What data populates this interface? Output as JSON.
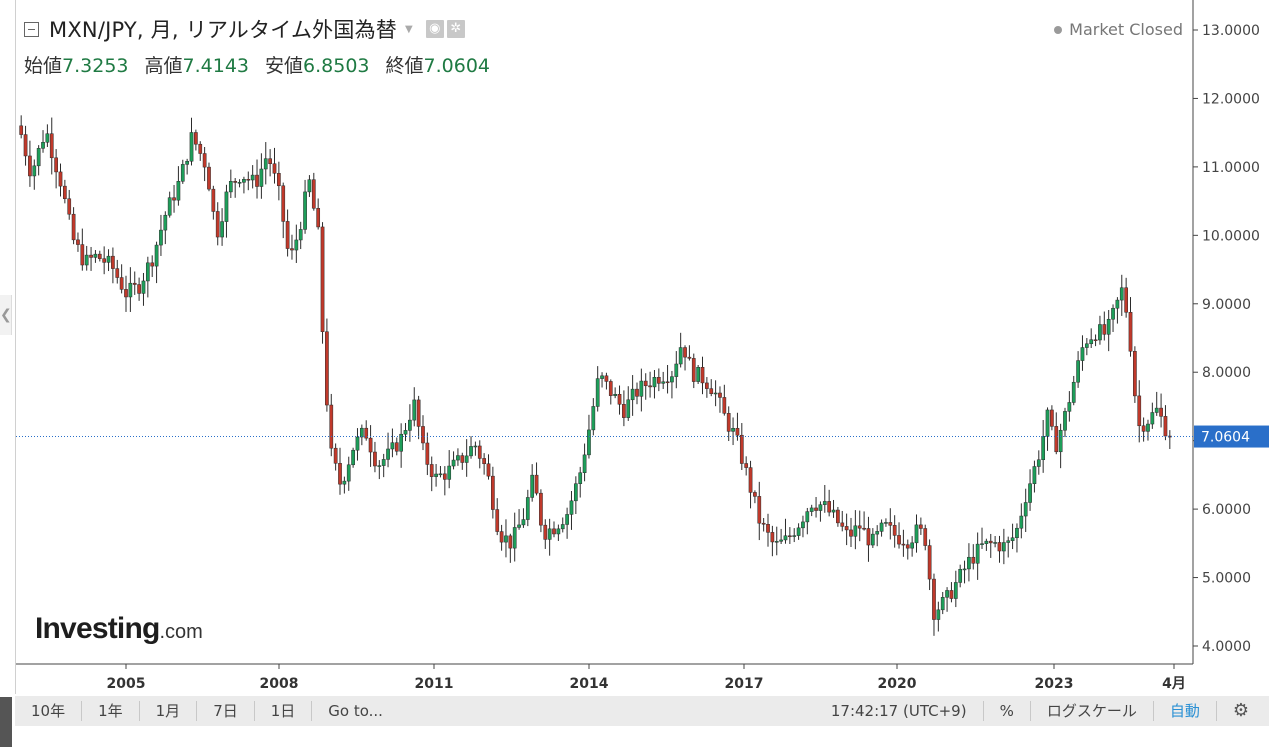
{
  "header": {
    "title": "MXN/JPY, 月, リアルタイム外国為替",
    "camera_icon": "camera-icon",
    "settings_icon": "gear-icon"
  },
  "ohlc": [
    {
      "label": "始値",
      "value": "7.3253"
    },
    {
      "label": "高値",
      "value": "7.4143"
    },
    {
      "label": "安値",
      "value": "6.8503"
    },
    {
      "label": "終値",
      "value": "7.0604"
    }
  ],
  "status": "Market Closed",
  "logo": {
    "main": "Investing",
    "suffix": ".com"
  },
  "toolbar": {
    "ranges": [
      "10年",
      "1年",
      "1月",
      "7日",
      "1日"
    ],
    "goto": "Go to...",
    "time": "17:42:17 (UTC+9)",
    "percent": "%",
    "log_scale": "ログスケール",
    "auto": "自動",
    "settings_icon": "gear-icon"
  },
  "colors": {
    "up": "#1e9e5a",
    "down": "#c0392b",
    "wick": "#2b2b2b",
    "price_line": "#2a6fc9",
    "price_label_bg": "#2a6fc9"
  },
  "chart_data": {
    "type": "candlestick",
    "pair": "MXN/JPY",
    "interval": "月",
    "x_start": 2003.35,
    "x_end": 2025.3,
    "x_ticks": [
      {
        "value": 2005,
        "label": "2005"
      },
      {
        "value": 2008,
        "label": "2008"
      },
      {
        "value": 2011,
        "label": "2011"
      },
      {
        "value": 2014,
        "label": "2014"
      },
      {
        "value": 2017,
        "label": "2017"
      },
      {
        "value": 2020,
        "label": "2020"
      },
      {
        "value": 2023,
        "label": "2023"
      },
      {
        "value": 2025.25,
        "label": "4月"
      }
    ],
    "ylim": [
      3.75,
      13.3
    ],
    "y_ticks": [
      "13.0000",
      "12.0000",
      "11.0000",
      "10.0000",
      "9.0000",
      "8.0000",
      "7.0000",
      "6.0000",
      "5.0000",
      "4.0000"
    ],
    "last_price": "7.0604",
    "last_value": 7.0604,
    "path": [
      [
        2003.35,
        11.6
      ],
      [
        2003.6,
        10.9
      ],
      [
        2003.9,
        11.55
      ],
      [
        2004.2,
        10.8
      ],
      [
        2004.45,
        9.95
      ],
      [
        2004.7,
        9.6
      ],
      [
        2004.95,
        9.7
      ],
      [
        2005.25,
        9.55
      ],
      [
        2005.55,
        9.15
      ],
      [
        2005.8,
        9.25
      ],
      [
        2006.1,
        9.7
      ],
      [
        2006.35,
        10.3
      ],
      [
        2006.65,
        10.8
      ],
      [
        2006.9,
        11.45
      ],
      [
        2007.2,
        11.0
      ],
      [
        2007.4,
        10.0
      ],
      [
        2007.65,
        10.7
      ],
      [
        2007.9,
        10.9
      ],
      [
        2008.2,
        10.75
      ],
      [
        2008.45,
        11.2
      ],
      [
        2008.7,
        10.55
      ],
      [
        2008.9,
        9.6
      ],
      [
        2009.1,
        10.1
      ],
      [
        2009.3,
        10.8
      ],
      [
        2009.5,
        9.95
      ],
      [
        2009.6,
        8.2
      ],
      [
        2009.75,
        6.8
      ],
      [
        2009.95,
        6.35
      ],
      [
        2010.2,
        6.9
      ],
      [
        2010.45,
        7.15
      ],
      [
        2010.7,
        6.65
      ],
      [
        2010.95,
        6.8
      ],
      [
        2011.2,
        7.05
      ],
      [
        2011.45,
        7.55
      ],
      [
        2011.65,
        6.8
      ],
      [
        2011.9,
        6.45
      ],
      [
        2012.15,
        6.55
      ],
      [
        2012.45,
        6.75
      ],
      [
        2012.7,
        6.95
      ],
      [
        2012.95,
        6.55
      ],
      [
        2013.2,
        5.65
      ],
      [
        2013.45,
        5.5
      ],
      [
        2013.7,
        5.9
      ],
      [
        2013.9,
        6.45
      ],
      [
        2014.1,
        5.65
      ],
      [
        2014.35,
        5.75
      ],
      [
        2014.6,
        5.95
      ],
      [
        2014.85,
        6.5
      ],
      [
        2015.05,
        7.2
      ],
      [
        2015.25,
        7.95
      ],
      [
        2015.5,
        7.7
      ],
      [
        2015.75,
        7.45
      ],
      [
        2016.0,
        7.7
      ],
      [
        2016.25,
        7.85
      ],
      [
        2016.5,
        7.95
      ],
      [
        2016.75,
        8.0
      ],
      [
        2016.95,
        8.45
      ],
      [
        2017.15,
        8.0
      ],
      [
        2017.4,
        7.9
      ],
      [
        2017.6,
        7.75
      ],
      [
        2017.85,
        7.3
      ],
      [
        2018.05,
        7.05
      ],
      [
        2018.3,
        6.45
      ],
      [
        2018.55,
        5.8
      ],
      [
        2018.85,
        5.45
      ],
      [
        2019.1,
        5.55
      ],
      [
        2019.35,
        5.8
      ],
      [
        2019.6,
        6.1
      ],
      [
        2019.85,
        6.05
      ],
      [
        2020.1,
        5.85
      ],
      [
        2020.35,
        5.6
      ],
      [
        2020.6,
        5.75
      ],
      [
        2020.85,
        5.5
      ],
      [
        2021.1,
        5.75
      ],
      [
        2021.35,
        5.6
      ],
      [
        2021.6,
        5.55
      ],
      [
        2021.8,
        5.7
      ],
      [
        2021.95,
        5.55
      ],
      [
        2022.1,
        4.5
      ],
      [
        2022.35,
        4.65
      ],
      [
        2022.6,
        4.95
      ],
      [
        2022.85,
        5.25
      ],
      [
        2023.1,
        5.45
      ],
      [
        2023.35,
        5.5
      ],
      [
        2023.6,
        5.45
      ],
      [
        2023.8,
        5.65
      ],
      [
        2024.0,
        6.2
      ],
      [
        2024.25,
        6.75
      ],
      [
        2024.45,
        7.35
      ],
      [
        2024.6,
        6.9
      ],
      [
        2024.8,
        7.35
      ],
      [
        2025.0,
        7.9
      ],
      [
        2025.2,
        8.45
      ],
      [
        2025.45,
        8.6
      ],
      [
        2025.65,
        8.55
      ],
      [
        2025.85,
        8.95
      ],
      [
        2026.0,
        9.25
      ],
      [
        2026.15,
        8.4
      ],
      [
        2026.3,
        7.2
      ],
      [
        2026.5,
        7.3
      ],
      [
        2026.7,
        7.45
      ],
      [
        2026.85,
        7.2
      ],
      [
        2027.0,
        7.06
      ]
    ]
  }
}
